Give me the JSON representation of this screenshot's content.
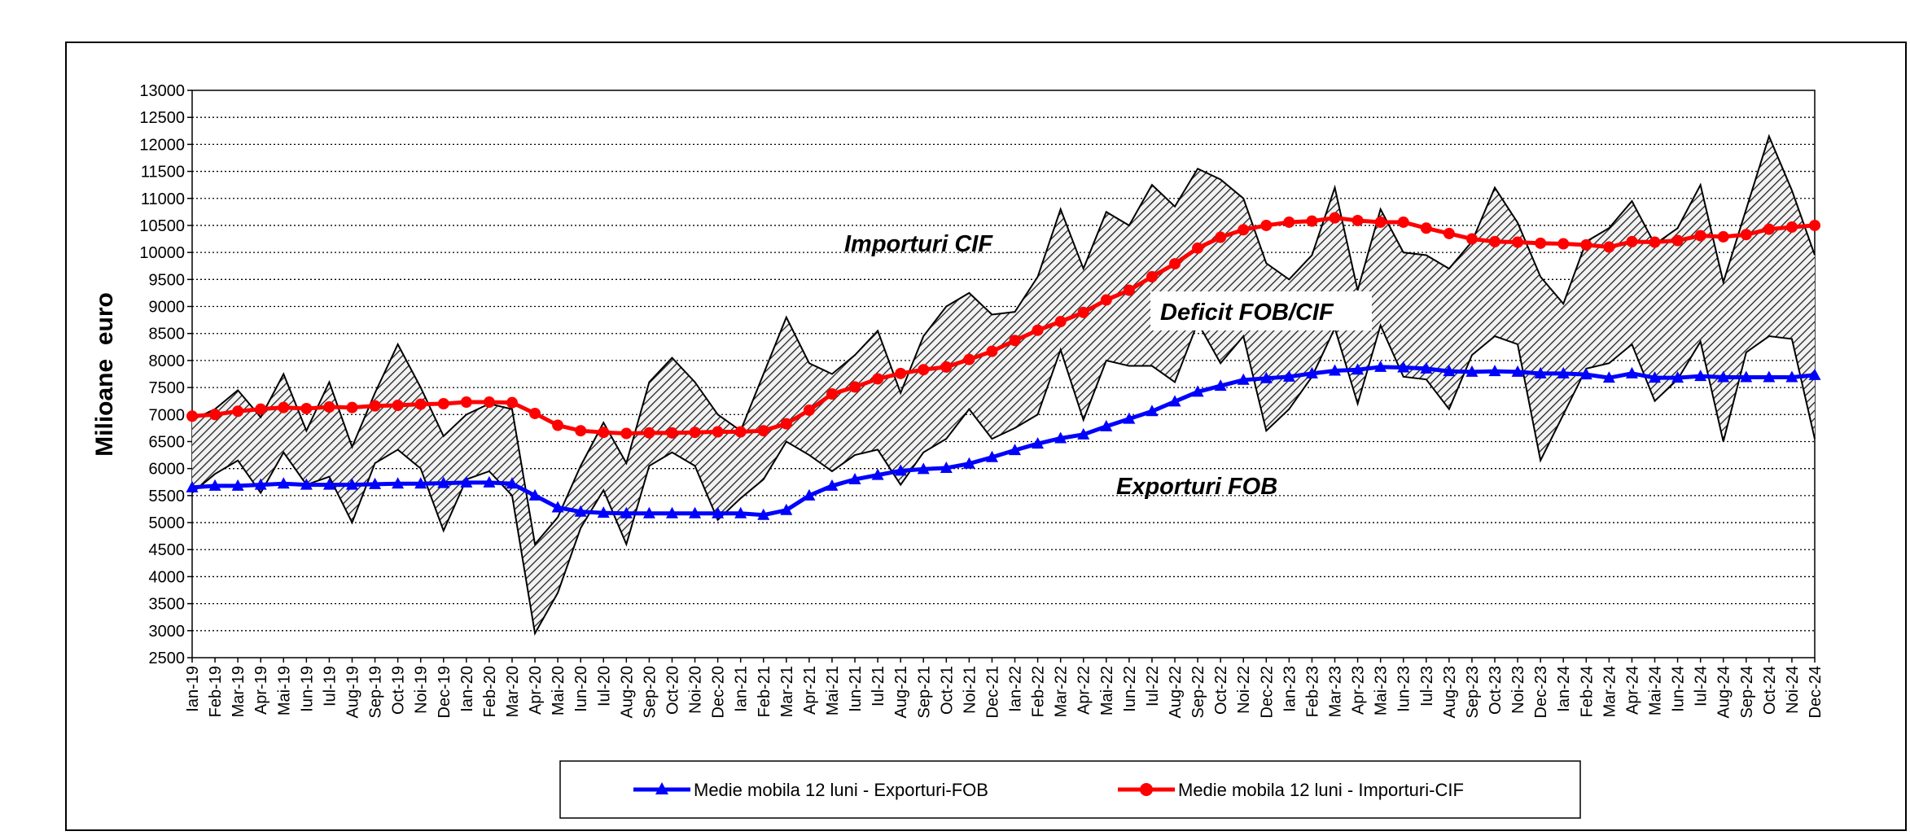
{
  "chart_data": {
    "type": "line",
    "title": "",
    "xlabel": "",
    "ylabel": "Milioane  euro",
    "ylim": [
      2500,
      13000
    ],
    "y_ticks": [
      2500,
      3000,
      3500,
      4000,
      4500,
      5000,
      5500,
      6000,
      6500,
      7000,
      7500,
      8000,
      8500,
      9000,
      9500,
      10000,
      10500,
      11000,
      11500,
      12000,
      12500,
      13000
    ],
    "grid": "horizontal dotted",
    "legend_position": "bottom",
    "annotations": {
      "imports": "Importuri CIF",
      "deficit": "Deficit FOB/CIF",
      "exports": "Exporturi FOB"
    },
    "x": [
      "Ian-19",
      "Feb-19",
      "Mar-19",
      "Apr-19",
      "Mai-19",
      "Iun-19",
      "Iul-19",
      "Aug-19",
      "Sep-19",
      "Oct-19",
      "Noi-19",
      "Dec-19",
      "Ian-20",
      "Feb-20",
      "Mar-20",
      "Apr-20",
      "Mai-20",
      "Iun-20",
      "Iul-20",
      "Aug-20",
      "Sep-20",
      "Oct-20",
      "Noi-20",
      "Dec-20",
      "Ian-21",
      "Feb-21",
      "Mar-21",
      "Apr-21",
      "Mai-21",
      "Iun-21",
      "Iul-21",
      "Aug-21",
      "Sep-21",
      "Oct-21",
      "Noi-21",
      "Dec-21",
      "Ian-22",
      "Feb-22",
      "Mar-22",
      "Apr-22",
      "Mai-22",
      "Iun-22",
      "Iul-22",
      "Aug-22",
      "Sep-22",
      "Oct-22",
      "Noi-22",
      "Dec-22",
      "Ian-23",
      "Feb-23",
      "Mar-23",
      "Apr-23",
      "Mai-23",
      "Iun-23",
      "Iul-23",
      "Aug-23",
      "Sep-23",
      "Oct-23",
      "Noi-23",
      "Dec-23",
      "Ian-24",
      "Feb-24",
      "Mar-24",
      "Apr-24",
      "Mai-24",
      "Iun-24",
      "Iul-24",
      "Aug-24",
      "Sep-24",
      "Oct-24",
      "Noi-24",
      "Dec-24"
    ],
    "series": [
      {
        "name": "Medie mobila 12 luni - Exporturi-FOB",
        "color": "#0000ff",
        "marker": "triangle",
        "values": [
          5650,
          5680,
          5680,
          5700,
          5720,
          5700,
          5700,
          5700,
          5710,
          5720,
          5720,
          5730,
          5740,
          5740,
          5720,
          5500,
          5280,
          5200,
          5180,
          5170,
          5170,
          5170,
          5170,
          5170,
          5170,
          5140,
          5230,
          5500,
          5680,
          5800,
          5880,
          5960,
          5990,
          6010,
          6090,
          6210,
          6340,
          6460,
          6560,
          6630,
          6780,
          6920,
          7060,
          7240,
          7420,
          7530,
          7640,
          7670,
          7700,
          7760,
          7810,
          7830,
          7880,
          7870,
          7850,
          7800,
          7790,
          7800,
          7790,
          7760,
          7760,
          7740,
          7680,
          7760,
          7680,
          7680,
          7710,
          7690,
          7690,
          7690,
          7690,
          7730
        ]
      },
      {
        "name": "Medie mobila 12 luni - Importuri-CIF",
        "color": "#ff0000",
        "marker": "circle",
        "values": [
          6970,
          7000,
          7060,
          7100,
          7130,
          7110,
          7140,
          7130,
          7160,
          7170,
          7190,
          7200,
          7230,
          7230,
          7220,
          7020,
          6800,
          6700,
          6670,
          6650,
          6660,
          6660,
          6670,
          6680,
          6680,
          6700,
          6830,
          7080,
          7380,
          7510,
          7660,
          7760,
          7830,
          7880,
          8020,
          8170,
          8370,
          8560,
          8720,
          8890,
          9120,
          9300,
          9550,
          9790,
          10080,
          10280,
          10420,
          10500,
          10560,
          10580,
          10640,
          10590,
          10560,
          10560,
          10450,
          10350,
          10250,
          10200,
          10190,
          10170,
          10160,
          10140,
          10100,
          10200,
          10190,
          10220,
          10310,
          10290,
          10330,
          10430,
          10470,
          10500
        ]
      },
      {
        "name": "Importuri CIF",
        "color": "#000000",
        "values": [
          6900,
          7100,
          7450,
          6950,
          7750,
          6700,
          7600,
          6400,
          7400,
          8300,
          7500,
          6600,
          7000,
          7200,
          7100,
          4600,
          5100,
          6050,
          6850,
          6100,
          7600,
          8050,
          7600,
          7000,
          6700,
          7750,
          8800,
          7950,
          7750,
          8100,
          8550,
          7400,
          8450,
          9000,
          9250,
          8850,
          8900,
          9550,
          10800,
          9700,
          10750,
          10500,
          11250,
          10850,
          11550,
          11350,
          11000,
          9800,
          9500,
          9950,
          11200,
          9300,
          10800,
          10000,
          9950,
          9700,
          10200,
          11200,
          10550,
          9550,
          9050,
          10200,
          10450,
          10950,
          10150,
          10450,
          11250,
          9450,
          10800,
          12150,
          11150,
          9950
        ]
      },
      {
        "name": "Exporturi FOB",
        "color": "#000000",
        "values": [
          5550,
          5900,
          6150,
          5550,
          6300,
          5700,
          5850,
          5000,
          6100,
          6350,
          6000,
          4850,
          5800,
          5950,
          5500,
          2950,
          3700,
          4900,
          5600,
          4600,
          6050,
          6300,
          6050,
          5050,
          5450,
          5800,
          6500,
          6250,
          5950,
          6250,
          6350,
          5700,
          6300,
          6550,
          7100,
          6550,
          6750,
          7000,
          8200,
          6900,
          8000,
          7900,
          7900,
          7600,
          8700,
          7950,
          8450,
          6700,
          7100,
          7700,
          8600,
          7200,
          8650,
          7700,
          7650,
          7100,
          8100,
          8450,
          8300,
          6150,
          7000,
          7850,
          7950,
          8300,
          7250,
          7650,
          8350,
          6500,
          8150,
          8450,
          8400,
          6550
        ]
      }
    ]
  }
}
